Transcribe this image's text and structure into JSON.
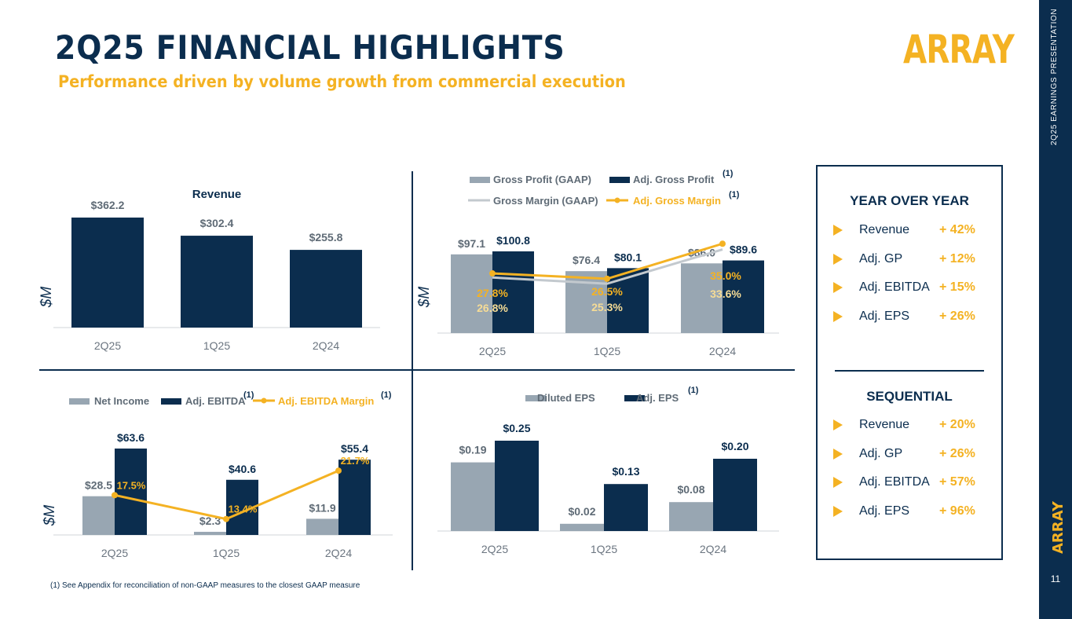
{
  "header": {
    "title": "2Q25 FINANCIAL HIGHLIGHTS",
    "subtitle": "Performance driven by volume growth from commercial execution",
    "logo": "ARRAY"
  },
  "sidebar": {
    "label": "2Q25 EARNINGS PRESENTATION",
    "logo": "ARRAY",
    "page_number": "11"
  },
  "colors": {
    "navy": "#0b2d4e",
    "gold": "#f4b223",
    "gray": "#98a6b2",
    "light_gray": "#c3c9ce",
    "pale_gold": "#f6dc96"
  },
  "chart_data": [
    {
      "id": "revenue",
      "type": "bar",
      "title": "Revenue",
      "ylabel": "$M",
      "categories": [
        "2Q25",
        "1Q25",
        "2Q24"
      ],
      "series": [
        {
          "name": "Revenue",
          "values": [
            362.2,
            302.4,
            255.8
          ],
          "labels": [
            "$362.2",
            "$302.4",
            "$255.8"
          ]
        }
      ],
      "ylim": [
        0,
        420
      ]
    },
    {
      "id": "gross_profit",
      "type": "bar",
      "ylabel": "$M",
      "categories": [
        "2Q25",
        "1Q25",
        "2Q24"
      ],
      "legend": [
        {
          "name": "Gross Profit (GAAP)",
          "note": ""
        },
        {
          "name": "Adj. Gross Profit",
          "note": "(1)"
        },
        {
          "name": "Gross Margin (GAAP)",
          "note": ""
        },
        {
          "name": "Adj. Gross Margin",
          "note": "(1)"
        }
      ],
      "series": [
        {
          "name": "Gross Profit (GAAP)",
          "values": [
            97.1,
            76.4,
            86.0
          ],
          "labels": [
            "$97.1",
            "$76.4",
            "$86.0"
          ]
        },
        {
          "name": "Adj. Gross Profit",
          "values": [
            100.8,
            80.1,
            89.6
          ],
          "labels": [
            "$100.8",
            "$80.1",
            "$89.6"
          ]
        }
      ],
      "lines": [
        {
          "name": "Gross Margin (GAAP)",
          "values": [
            26.8,
            25.3,
            33.6
          ],
          "labels": [
            "26.8%",
            "25.3%",
            "33.6%"
          ]
        },
        {
          "name": "Adj. Gross Margin",
          "values": [
            27.8,
            26.5,
            35.0
          ],
          "labels": [
            "27.8%",
            "26.5%",
            "35.0%"
          ]
        }
      ],
      "ylim": [
        0,
        110
      ],
      "line_ylim": [
        0,
        42
      ]
    },
    {
      "id": "ebitda",
      "type": "bar",
      "ylabel": "$M",
      "categories": [
        "2Q25",
        "1Q25",
        "2Q24"
      ],
      "legend": [
        {
          "name": "Net Income",
          "note": ""
        },
        {
          "name": "Adj. EBITDA",
          "note": "(1)"
        },
        {
          "name": "Adj. EBITDA Margin",
          "note": "(1)"
        }
      ],
      "series": [
        {
          "name": "Net Income",
          "values": [
            28.5,
            2.3,
            11.9
          ],
          "labels": [
            "$28.5",
            "$2.3",
            "$11.9"
          ]
        },
        {
          "name": "Adj. EBITDA",
          "values": [
            63.6,
            40.6,
            55.4
          ],
          "labels": [
            "$63.6",
            "$40.6",
            "$55.4"
          ]
        }
      ],
      "lines": [
        {
          "name": "Adj. EBITDA Margin",
          "values": [
            17.5,
            13.4,
            21.7
          ],
          "labels": [
            "17.5%",
            "13.4%",
            "21.7%"
          ]
        }
      ],
      "ylim": [
        0,
        70
      ],
      "line_ylim": [
        0,
        45
      ]
    },
    {
      "id": "eps",
      "type": "bar",
      "categories": [
        "2Q25",
        "1Q25",
        "2Q24"
      ],
      "legend": [
        {
          "name": "Diluted EPS",
          "note": ""
        },
        {
          "name": "Adj. EPS",
          "note": "(1)"
        }
      ],
      "series": [
        {
          "name": "Diluted EPS",
          "values": [
            0.19,
            0.02,
            0.08
          ],
          "labels": [
            "$0.19",
            "$0.02",
            "$0.08"
          ]
        },
        {
          "name": "Adj. EPS",
          "values": [
            0.25,
            0.13,
            0.2
          ],
          "labels": [
            "$0.25",
            "$0.13",
            "$0.20"
          ]
        }
      ],
      "ylim": [
        0,
        0.27
      ]
    }
  ],
  "summary": {
    "yoy_title": "YEAR OVER YEAR",
    "yoy": [
      {
        "label": "Revenue",
        "value": "+ 42%"
      },
      {
        "label": "Adj. GP",
        "value": "+ 12%"
      },
      {
        "label": "Adj. EBITDA",
        "value": "+ 15%"
      },
      {
        "label": "Adj. EPS",
        "value": "+ 26%"
      }
    ],
    "seq_title": "SEQUENTIAL",
    "seq": [
      {
        "label": "Revenue",
        "value": "+ 20%"
      },
      {
        "label": "Adj. GP",
        "value": "+ 26%"
      },
      {
        "label": "Adj. EBITDA",
        "value": "+ 57%"
      },
      {
        "label": "Adj. EPS",
        "value": "+ 96%"
      }
    ]
  },
  "footnote": "(1)    See Appendix for reconciliation of non-GAAP measures to the closest GAAP measure"
}
